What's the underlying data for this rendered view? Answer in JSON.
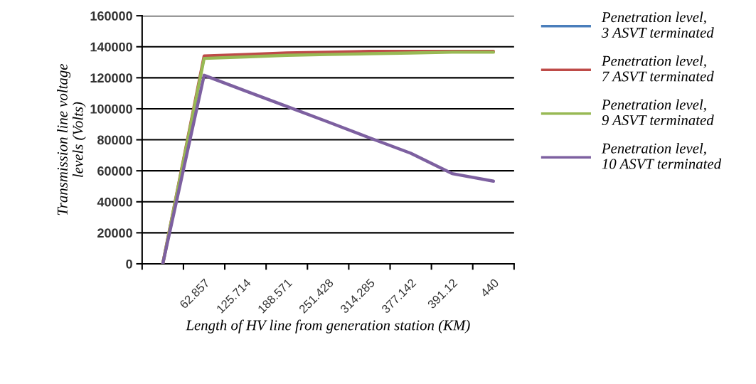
{
  "chart_data": {
    "type": "line",
    "xlabel": "Length of HV line from generation station (KM)",
    "ylabel": "Transmission line voltage levels (Volts)",
    "categories": [
      null,
      "62.857",
      "125.714",
      "188.571",
      "251.428",
      "314.285",
      "377.142",
      "391.12",
      "440"
    ],
    "ylim": [
      0,
      160000
    ],
    "yticks": [
      0,
      20000,
      40000,
      60000,
      80000,
      100000,
      120000,
      140000,
      160000
    ],
    "grid": "y",
    "legend": "right",
    "marker": "none",
    "line_style": "solid",
    "series": [
      {
        "name": "Penetration level, 3 ASVT terminated",
        "color": "#4a7ebb",
        "values": [
          null,
          null,
          null,
          null,
          null,
          null,
          null,
          null,
          null
        ]
      },
      {
        "name": "Penetration level, 7 ASVT terminated",
        "color": "#be4b48",
        "values": [
          0,
          134000,
          135000,
          136000,
          136500,
          137000,
          137000,
          137000,
          137000
        ]
      },
      {
        "name": "Penetration level, 9 ASVT terminated",
        "color": "#98b954",
        "values": [
          0,
          132500,
          133500,
          134500,
          135000,
          135500,
          136000,
          136500,
          136500
        ]
      },
      {
        "name": "Penetration level, 10 ASVT terminated",
        "color": "#7d60a0",
        "values": [
          0,
          121600,
          111500,
          101500,
          91500,
          81300,
          71300,
          58200,
          53300
        ]
      }
    ]
  }
}
